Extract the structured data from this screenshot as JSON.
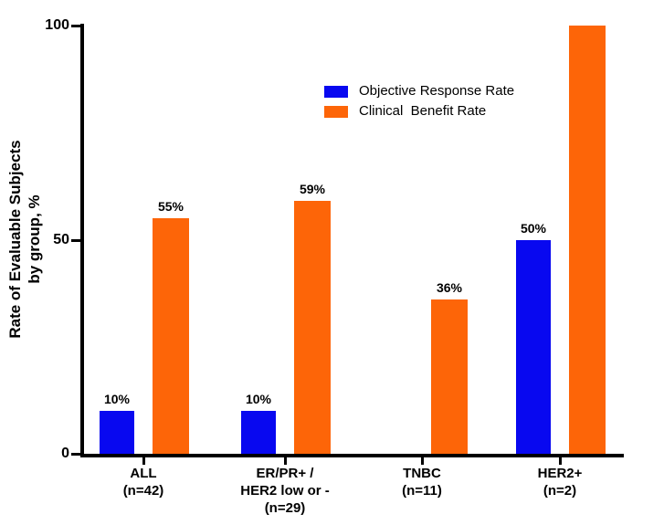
{
  "chart_data": {
    "type": "bar",
    "title": "",
    "ylabel_lines": [
      "Rate of Evaluable Subjects",
      "by group, %"
    ],
    "ylabel": "Rate of Evaluable Subjects by group, %",
    "xlabel": "",
    "ylim": [
      0,
      100
    ],
    "yticks": [
      {
        "value": 0,
        "label": "0"
      },
      {
        "value": 50,
        "label": "50"
      },
      {
        "value": 100,
        "label": "100"
      }
    ],
    "grid": false,
    "axis_color": "#000000",
    "categories": [
      {
        "lines": [
          "ALL",
          "(n=42)"
        ]
      },
      {
        "lines": [
          "ER/PR+ /",
          "HER2 low or -",
          "(n=29)"
        ]
      },
      {
        "lines": [
          "TNBC",
          "(n=11)"
        ]
      },
      {
        "lines": [
          "HER2+",
          "(n=2)"
        ]
      }
    ],
    "series": [
      {
        "name": "Objective Response Rate",
        "color": "#0808F0",
        "values": [
          10,
          10,
          null,
          50
        ],
        "bar_labels": [
          "10%",
          "10%",
          null,
          "50%"
        ]
      },
      {
        "name": "Clinical  Benefit Rate",
        "color": "#FD6508",
        "values": [
          55,
          59,
          36,
          100
        ],
        "bar_labels": [
          "55%",
          "59%",
          "36%",
          null
        ]
      }
    ],
    "legend_position": "upper-center-right"
  }
}
